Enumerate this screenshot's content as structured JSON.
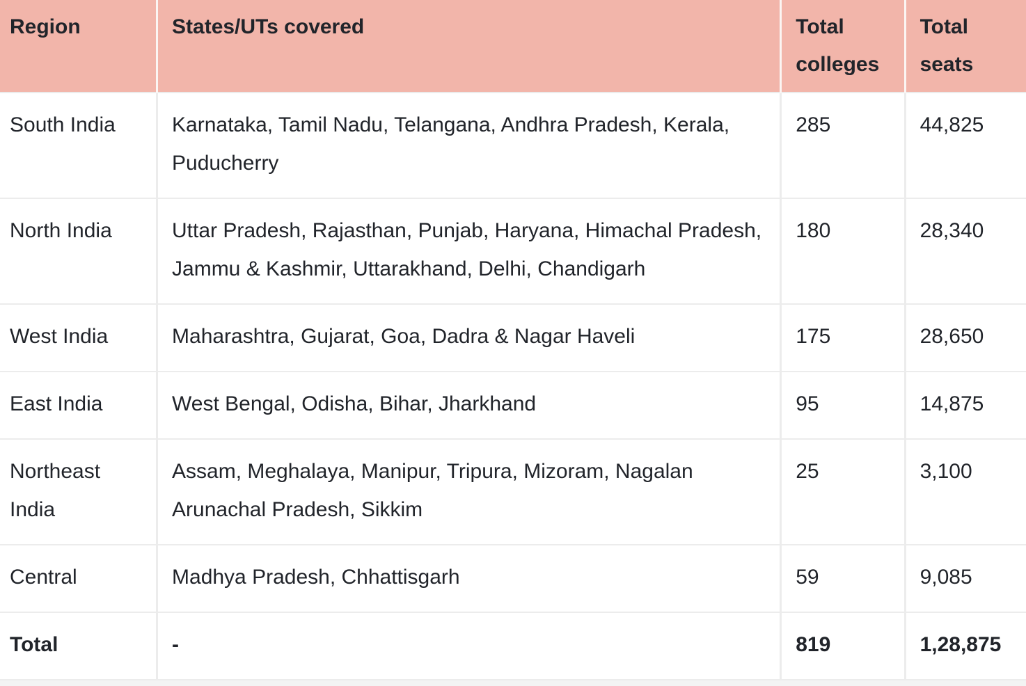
{
  "colors": {
    "header_bg": "#f2b5aa",
    "body_bg": "#ffffff",
    "text": "#21242a",
    "divider": "#ececec"
  },
  "table": {
    "columns": {
      "region": "Region",
      "states": "States/UTs covered",
      "colleges": "Total colleges",
      "seats": "Total seats"
    },
    "rows": [
      {
        "region": "South India",
        "states": "Karnataka, Tamil Nadu, Telangana, Andhra Pradesh, Kerala, Puducherry",
        "colleges": "285",
        "seats": "44,825"
      },
      {
        "region": "North India",
        "states": "Uttar Pradesh, Rajasthan, Punjab, Haryana, Himachal Pradesh, Jammu & Kashmir, Uttarakhand, Delhi, Chan­digarh",
        "colleges": "180",
        "seats": "28,340"
      },
      {
        "region": "West India",
        "states": "Maharashtra, Gujarat, Goa, Dadra & Nagar Haveli",
        "colleges": "175",
        "seats": "28,650"
      },
      {
        "region": "East India",
        "states": "West Bengal, Odisha, Bihar, Jharkhand",
        "colleges": "95",
        "seats": "14,875"
      },
      {
        "region": "Northeast India",
        "states": "Assam, Meghalaya, Manipur, Tripura, Mizoram, Nagalan Arunachal Pradesh, Sikkim",
        "colleges": "25",
        "seats": "3,100"
      },
      {
        "region": "Central",
        "states": "Madhya Pradesh, Chhattisgarh",
        "colleges": "59",
        "seats": "9,085"
      }
    ],
    "total_row": {
      "region": "Total",
      "states": "-",
      "colleges": "819",
      "seats": "1,28,875"
    }
  }
}
